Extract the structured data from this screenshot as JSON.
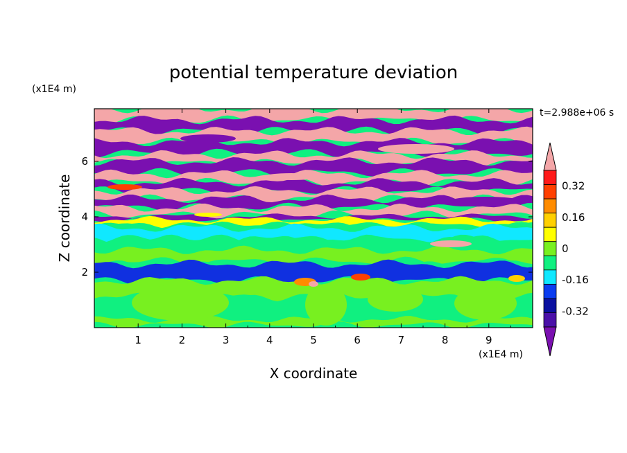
{
  "chart_data": {
    "type": "heatmap",
    "title": "potential temperature deviation",
    "xlabel": "X coordinate",
    "ylabel": "Z coordinate",
    "x_unit": "(x1E4 m)",
    "y_unit": "(x1E4 m)",
    "time_label": "t=2.988e+06 s",
    "xlim": [
      0,
      10
    ],
    "ylim": [
      0,
      7.9
    ],
    "x_ticks": [
      "1",
      "2",
      "3",
      "4",
      "5",
      "6",
      "7",
      "8",
      "9"
    ],
    "y_ticks": [
      "2",
      "4",
      "6"
    ],
    "colorbar": {
      "levels": [
        -0.48,
        -0.4,
        -0.32,
        -0.24,
        -0.16,
        -0.08,
        0,
        0.08,
        0.16,
        0.24,
        0.32,
        0.4,
        0.48
      ],
      "tick_labels": [
        "0.32",
        "0.16",
        "0",
        "-0.16",
        "-0.32"
      ],
      "colors": [
        "#7a10b0",
        "#4a10a8",
        "#0a10a0",
        "#0a3cf0",
        "#10e8ff",
        "#10f080",
        "#78f020",
        "#ffff00",
        "#ffd000",
        "#ff8c00",
        "#ff4000",
        "#ff1a1a",
        "#f4a6a8"
      ]
    },
    "bands": [
      {
        "z": 7.7,
        "color": "#f4a6a8"
      },
      {
        "z": 7.3,
        "color": "#7a10b0"
      },
      {
        "z": 6.9,
        "color": "#f4a6a8"
      },
      {
        "z": 6.5,
        "color": "#7a10b0"
      },
      {
        "z": 6.1,
        "color": "#f4a6a8"
      },
      {
        "z": 5.8,
        "color": "#7a10b0"
      },
      {
        "z": 5.4,
        "color": "#f4a6a8"
      },
      {
        "z": 5.1,
        "color": "#7a10b0"
      },
      {
        "z": 4.8,
        "color": "#f4a6a8"
      },
      {
        "z": 4.5,
        "color": "#7a10b0"
      },
      {
        "z": 4.2,
        "color": "#f4a6a8"
      },
      {
        "z": 3.95,
        "color": "#7a10b0"
      },
      {
        "z": 3.8,
        "color": "#ffff00"
      },
      {
        "z": 3.6,
        "color": "#10f080"
      },
      {
        "z": 3.4,
        "color": "#10e8ff"
      },
      {
        "z": 3.0,
        "color": "#10f080"
      },
      {
        "z": 2.6,
        "color": "#78f020"
      },
      {
        "z": 2.2,
        "color": "#10f080"
      },
      {
        "z": 2.0,
        "color": "#1030e0"
      },
      {
        "z": 1.4,
        "color": "#78f020"
      },
      {
        "z": 0.8,
        "color": "#10f080"
      },
      {
        "z": 0.2,
        "color": "#78f020"
      }
    ]
  }
}
